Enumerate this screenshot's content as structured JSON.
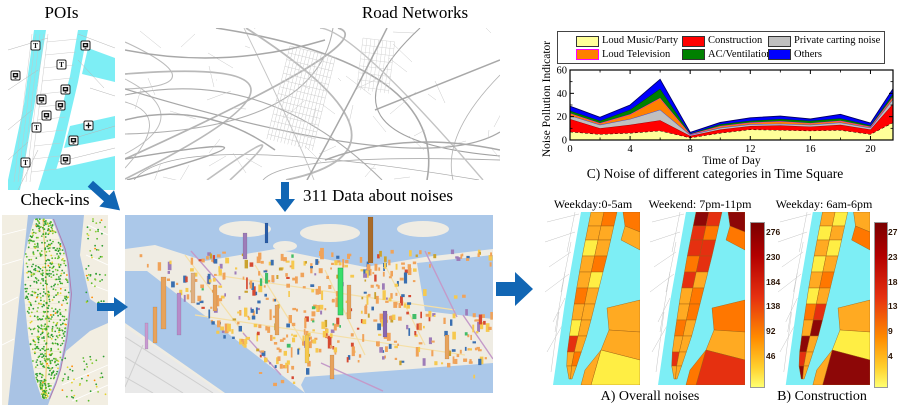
{
  "panels": {
    "pois": {
      "title": "POIs"
    },
    "road_networks": {
      "title": "Road Networks"
    },
    "checkins": {
      "title": "Check-ins"
    },
    "noise_311": {
      "label": "311 Data about noises"
    }
  },
  "chart_data": {
    "type": "area",
    "stacked": true,
    "title": "C)  Noise of different categories in Time Square",
    "xlabel": "Time of Day",
    "ylabel": "Noise Pollution Indicator",
    "x": [
      0,
      2,
      4,
      6,
      8,
      10,
      12,
      14,
      16,
      18,
      20,
      21.5
    ],
    "xlim": [
      0,
      21.5
    ],
    "ylim": [
      0,
      60
    ],
    "xticks": [
      0,
      4,
      8,
      12,
      16,
      20
    ],
    "xticks_minor": [
      2,
      6,
      10,
      14,
      18
    ],
    "yticks": [
      0,
      20,
      40,
      60
    ],
    "yticks_minor": [
      10,
      30,
      50
    ],
    "grid": false,
    "legend_position": "top",
    "series": [
      {
        "name": "Loud Music/Party",
        "color": "#ffff99",
        "edge": "#000000",
        "dash": "3,2",
        "values": [
          7,
          5,
          6,
          8,
          2,
          6,
          9,
          8.5,
          8,
          8.5,
          5,
          15
        ]
      },
      {
        "name": "Construction",
        "color": "#ff0000",
        "edge": "#990000",
        "dash": "none",
        "values": [
          11,
          5,
          7,
          9,
          1.5,
          3,
          3,
          4,
          3.5,
          4.5,
          4,
          16
        ]
      },
      {
        "name": "Private carting noise",
        "color": "#c0c0c0",
        "edge": "#3344dd",
        "dash": "none",
        "values": [
          3,
          3,
          5,
          9,
          1,
          1.5,
          1.5,
          1.5,
          1.5,
          2,
          1.5,
          4
        ]
      },
      {
        "name": "Loud Television",
        "color": "#ff8000",
        "edge": "#ff00ff",
        "dash": "none",
        "values": [
          2,
          1.5,
          4,
          10,
          0.5,
          1.5,
          1.5,
          2,
          1.5,
          1.5,
          1,
          2
        ]
      },
      {
        "name": "AC/Ventilation",
        "color": "#008000",
        "edge": "#004d00",
        "dash": "none",
        "values": [
          2,
          2,
          4,
          8,
          0.5,
          1.5,
          1.5,
          2,
          2,
          2,
          1,
          2.5
        ]
      },
      {
        "name": "Others",
        "color": "#0000ff",
        "edge": "#000066",
        "dash": "none",
        "values": [
          4,
          3,
          4,
          8,
          1,
          1.5,
          2.5,
          2.5,
          1.5,
          3.5,
          2,
          4.5
        ]
      }
    ],
    "legend_edge_overrides": {
      "Loud Television": "#ff00ff"
    }
  },
  "heatmaps": {
    "panel_labels": [
      "Weekday:0-5am",
      "Weekend: 7pm-11pm",
      "Weekday: 6am-6pm"
    ],
    "captions": {
      "overall": "A) Overall noises",
      "construction": "B)  Construction"
    },
    "colorbar_overall": {
      "ticks": [
        276,
        230,
        184,
        138,
        92,
        46
      ]
    },
    "colorbar_construction": {
      "ticks": [
        27,
        23,
        18,
        13,
        9,
        4
      ]
    }
  },
  "colors": {
    "arrow_blue": "#1166b4",
    "water_cyan": "#7deef5",
    "map_water": "#a9c3e4",
    "colorbar_top": "#7a0000",
    "colorbar_bottom": "#ffff70"
  }
}
